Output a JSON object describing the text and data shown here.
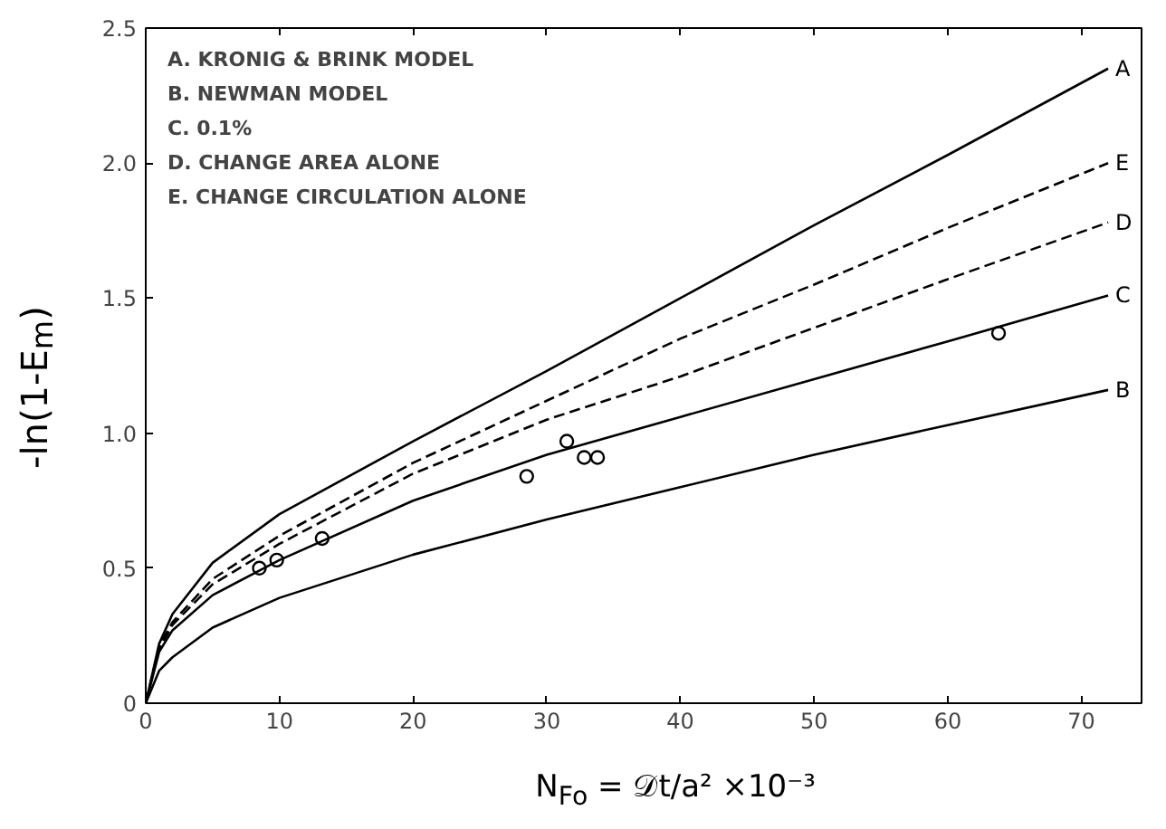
{
  "chart_data": {
    "type": "line",
    "xlabel": "N$_{Fo}$ = 𝒟t/a²  ×10⁻³",
    "ylabel": "-ln(1-E$_{m}$)",
    "xlim": [
      0,
      74.5
    ],
    "ylim": [
      0,
      2.5
    ],
    "xticks": [
      0,
      10,
      20,
      30,
      40,
      50,
      60,
      70
    ],
    "yticks": [
      0,
      {
        "value": 0.5,
        "label": "0.5"
      },
      {
        "value": 1,
        "label": "1.0"
      },
      {
        "value": 1.5,
        "label": "1.5"
      },
      {
        "value": 2,
        "label": "2.0"
      },
      {
        "value": 2.5,
        "label": "2.5"
      }
    ],
    "grid": false,
    "series": [
      {
        "name": "A",
        "color": "#000000",
        "line_style": "solid",
        "x": [
          0,
          1,
          2,
          5,
          10,
          20,
          30,
          40,
          50,
          60,
          72
        ],
        "values": [
          0,
          0.22,
          0.33,
          0.52,
          0.7,
          0.97,
          1.23,
          1.5,
          1.77,
          2.03,
          2.35
        ]
      },
      {
        "name": "B",
        "color": "#000000",
        "line_style": "solid",
        "x": [
          0,
          1,
          2,
          5,
          10,
          20,
          30,
          40,
          50,
          60,
          72
        ],
        "values": [
          0,
          0.12,
          0.17,
          0.28,
          0.39,
          0.55,
          0.68,
          0.8,
          0.92,
          1.03,
          1.16
        ]
      },
      {
        "name": "C",
        "color": "#000000",
        "line_style": "solid",
        "x": [
          0,
          1,
          2,
          5,
          10,
          20,
          30,
          40,
          50,
          60,
          72
        ],
        "values": [
          0,
          0.19,
          0.27,
          0.4,
          0.53,
          0.75,
          0.92,
          1.06,
          1.2,
          1.34,
          1.51
        ]
      },
      {
        "name": "D",
        "color": "#000000",
        "line_style": "dashed",
        "x": [
          0,
          1,
          2,
          5,
          10,
          20,
          30,
          40,
          50,
          60,
          72
        ],
        "values": [
          0,
          0.2,
          0.29,
          0.44,
          0.59,
          0.85,
          1.05,
          1.21,
          1.39,
          1.57,
          1.78
        ]
      },
      {
        "name": "E",
        "color": "#000000",
        "line_style": "dashed",
        "x": [
          0,
          1,
          2,
          5,
          10,
          20,
          30,
          40,
          50,
          60,
          72
        ],
        "values": [
          0,
          0.21,
          0.3,
          0.46,
          0.62,
          0.89,
          1.12,
          1.35,
          1.55,
          1.76,
          2.0
        ]
      },
      {
        "type": "scatter",
        "marker": "circle",
        "color": "#000000",
        "x": [
          8.5,
          9.8,
          13.2,
          28.5,
          31.5,
          32.8,
          33.8,
          63.8
        ],
        "values": [
          0.5,
          0.53,
          0.61,
          0.84,
          0.97,
          0.91,
          0.91,
          1.37
        ]
      }
    ],
    "annotations": [
      "A. KRONIG & BRINK MODEL",
      "B. NEWMAN MODEL",
      "C. 0.1%",
      "D. CHANGE AREA ALONE",
      "E. CHANGE CIRCULATION ALONE"
    ]
  }
}
